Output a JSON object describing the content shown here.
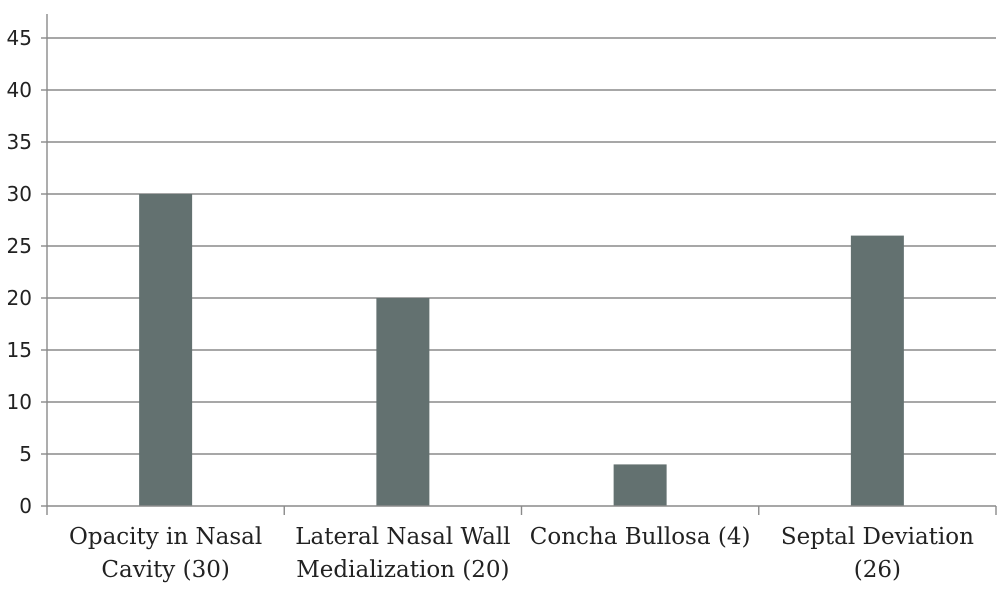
{
  "chart_data": {
    "type": "bar",
    "categories": [
      [
        "Opacity in Nasal",
        "Cavity (30)"
      ],
      [
        "Lateral Nasal Wall",
        "Medialization (20)"
      ],
      [
        "Concha Bullosa (4)"
      ],
      [
        "Septal Deviation",
        "(26)"
      ]
    ],
    "values": [
      30,
      20,
      4,
      26
    ],
    "ylim": [
      0,
      45
    ],
    "yticks": [
      0,
      5,
      10,
      15,
      20,
      25,
      30,
      35,
      40,
      45
    ],
    "title": "",
    "xlabel": "",
    "ylabel": "",
    "grid": true,
    "legend": "none",
    "colors": {
      "bar": "#637170",
      "grid": "#8a8a8a",
      "axis": "#8a8a8a"
    }
  }
}
